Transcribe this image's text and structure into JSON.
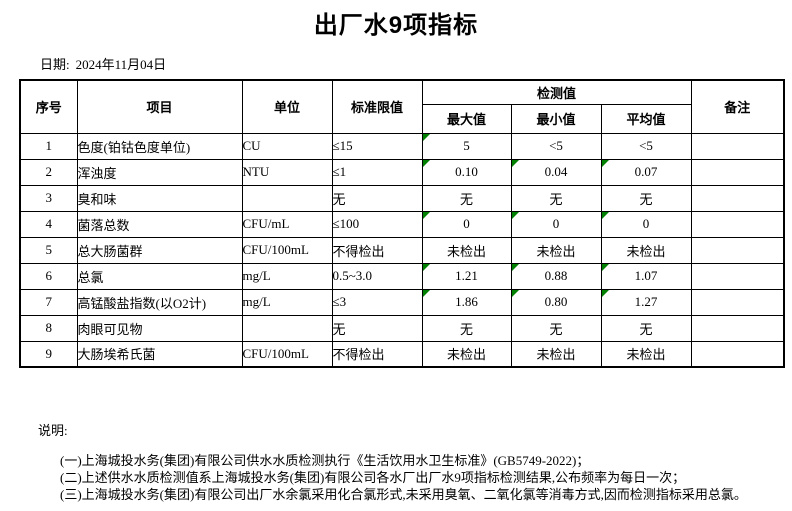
{
  "page": {
    "title": "出厂水9项指标",
    "date_label": "日期:",
    "date_value": "2024年11月04日"
  },
  "table": {
    "headers": {
      "seq": "序号",
      "item": "项目",
      "unit": "单位",
      "limit": "标准限值",
      "detect": "检测值",
      "max": "最大值",
      "min": "最小值",
      "avg": "平均值",
      "remark": "备注"
    },
    "rows": [
      {
        "seq": "1",
        "item": "色度(铂钴色度单位)",
        "unit": "CU",
        "limit": "≤15",
        "max": "5",
        "min": "<5",
        "avg": "<5",
        "remark": "",
        "marks": [
          true,
          false,
          false
        ]
      },
      {
        "seq": "2",
        "item": "浑浊度",
        "unit": "NTU",
        "limit": "≤1",
        "max": "0.10",
        "min": "0.04",
        "avg": "0.07",
        "remark": "",
        "marks": [
          true,
          true,
          true
        ]
      },
      {
        "seq": "3",
        "item": "臭和味",
        "unit": "",
        "limit": "无",
        "max": "无",
        "min": "无",
        "avg": "无",
        "remark": "",
        "marks": [
          false,
          false,
          false
        ]
      },
      {
        "seq": "4",
        "item": "菌落总数",
        "unit": "CFU/mL",
        "limit": "≤100",
        "max": "0",
        "min": "0",
        "avg": "0",
        "remark": "",
        "marks": [
          true,
          true,
          true
        ]
      },
      {
        "seq": "5",
        "item": "总大肠菌群",
        "unit": "CFU/100mL",
        "limit": "不得检出",
        "max": "未检出",
        "min": "未检出",
        "avg": "未检出",
        "remark": "",
        "marks": [
          false,
          false,
          false
        ]
      },
      {
        "seq": "6",
        "item": "总氯",
        "unit": "mg/L",
        "limit": "0.5~3.0",
        "max": "1.21",
        "min": "0.88",
        "avg": "1.07",
        "remark": "",
        "marks": [
          true,
          true,
          true
        ]
      },
      {
        "seq": "7",
        "item": "高锰酸盐指数(以O2计)",
        "unit": "mg/L",
        "limit": "≤3",
        "max": "1.86",
        "min": "0.80",
        "avg": "1.27",
        "remark": "",
        "marks": [
          true,
          true,
          true
        ]
      },
      {
        "seq": "8",
        "item": "肉眼可见物",
        "unit": "",
        "limit": "无",
        "max": "无",
        "min": "无",
        "avg": "无",
        "remark": "",
        "marks": [
          false,
          false,
          false
        ]
      },
      {
        "seq": "9",
        "item": "大肠埃希氏菌",
        "unit": "CFU/100mL",
        "limit": "不得检出",
        "max": "未检出",
        "min": "未检出",
        "avg": "未检出",
        "remark": "",
        "marks": [
          false,
          false,
          false
        ]
      }
    ]
  },
  "notes": {
    "label": "说明:",
    "items": [
      "(一)上海城投水务(集团)有限公司供水水质检测执行《生活饮用水卫生标准》(GB5749-2022)；",
      "(二)上述供水水质检测值系上海城投水务(集团)有限公司各水厂出厂水9项指标检测结果,公布频率为每日一次；",
      "(三)上海城投水务(集团)有限公司出厂水余氯采用化合氯形式,未采用臭氧、二氧化氯等消毒方式,因而检测指标采用总氯。"
    ]
  },
  "colors": {
    "mark_green": "#008000",
    "border": "#000000",
    "background": "#ffffff"
  }
}
